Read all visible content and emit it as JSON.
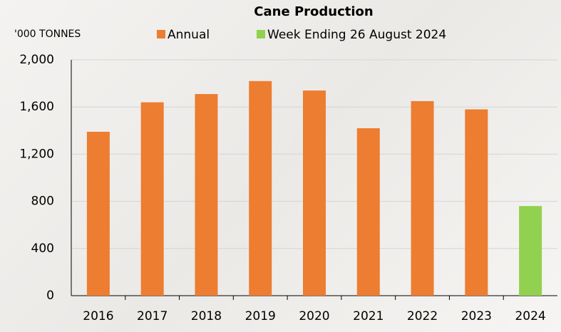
{
  "chart_data": {
    "type": "bar",
    "title": "Cane Production",
    "y_label": "'000 TONNES",
    "categories": [
      "2016",
      "2017",
      "2018",
      "2019",
      "2020",
      "2021",
      "2022",
      "2023",
      "2024"
    ],
    "series": [
      {
        "name": "Annual",
        "color": "#ed7d31",
        "values": [
          1390,
          1640,
          1710,
          1820,
          1740,
          1420,
          1650,
          1580,
          null
        ]
      },
      {
        "name": "Week Ending 26 August 2024",
        "color": "#92d050",
        "values": [
          null,
          null,
          null,
          null,
          null,
          null,
          null,
          null,
          760
        ]
      }
    ],
    "ylim": [
      0,
      2000
    ],
    "yticks": [
      0,
      {
        "value": 400,
        "label": "400"
      },
      {
        "value": 800,
        "label": "800"
      },
      {
        "value": 1200,
        "label": "1,200"
      },
      {
        "value": 1600,
        "label": "1,600"
      },
      {
        "value": 2000,
        "label": "2,000"
      }
    ],
    "grid": true,
    "legend": "top"
  }
}
